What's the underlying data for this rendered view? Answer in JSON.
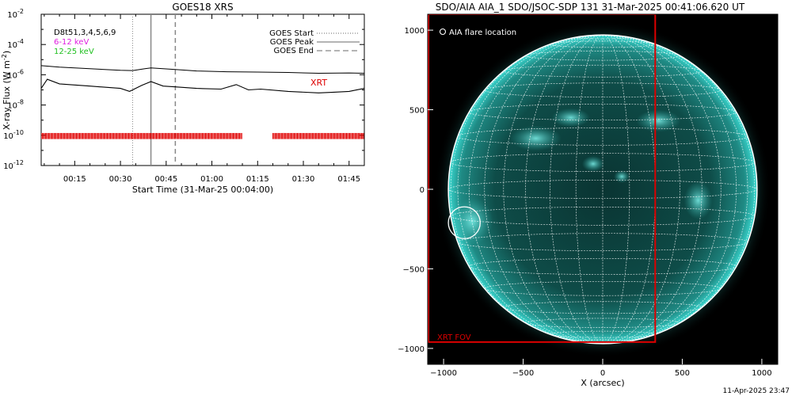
{
  "chart_data": [
    {
      "type": "line",
      "title": "GOES18 XRS",
      "xlabel": "Start Time (31-Mar-25 00:04:00)",
      "ylabel": "X-ray Flux (W m",
      "ylabel_sup": "-2",
      "ylabel_close": ")",
      "y_scale": "log",
      "ylim_exponent": [
        -12,
        -2
      ],
      "y_ticks": [
        {
          "base": "10",
          "exp": "-2",
          "v": -2
        },
        {
          "base": "10",
          "exp": "-4",
          "v": -4
        },
        {
          "base": "10",
          "exp": "-6",
          "v": -6
        },
        {
          "base": "10",
          "exp": "-8",
          "v": -8
        },
        {
          "base": "10",
          "exp": "-10",
          "v": -10
        },
        {
          "base": "10",
          "exp": "-12",
          "v": -12
        }
      ],
      "xlim_minutes": [
        4,
        110
      ],
      "x_ticks": [
        {
          "label": "00:15",
          "m": 15
        },
        {
          "label": "00:30",
          "m": 30
        },
        {
          "label": "00:45",
          "m": 45
        },
        {
          "label": "01:00",
          "m": 60
        },
        {
          "label": "01:15",
          "m": 75
        },
        {
          "label": "01:30",
          "m": 90
        },
        {
          "label": "01:45",
          "m": 105
        }
      ],
      "legend_left": [
        {
          "text": "D8t51,3,4,5,6,9",
          "color": "#000000"
        },
        {
          "text": "6-12 keV",
          "color": "#e020e0"
        },
        {
          "text": "12-25 keV",
          "color": "#20c020"
        }
      ],
      "legend_right": [
        {
          "text": "GOES Start",
          "style": "dotted"
        },
        {
          "text": "GOES Peak",
          "style": "solid"
        },
        {
          "text": "GOES End",
          "style": "dashed"
        }
      ],
      "event_lines_minutes": {
        "start": 34,
        "peak": 40,
        "end": 48
      },
      "xrt_label": "XRT",
      "xrt_coverage_minutes": [
        [
          4,
          70
        ],
        [
          80,
          110
        ]
      ],
      "series": [
        {
          "name": "GOES long",
          "color": "#000000",
          "x": [
            4,
            10,
            20,
            30,
            34,
            38,
            40,
            44,
            48,
            55,
            65,
            75,
            85,
            95,
            105,
            110
          ],
          "y_exponent": [
            -5.4,
            -5.5,
            -5.6,
            -5.7,
            -5.72,
            -5.6,
            -5.55,
            -5.6,
            -5.65,
            -5.75,
            -5.8,
            -5.82,
            -5.85,
            -5.9,
            -5.88,
            -5.9
          ]
        },
        {
          "name": "GOES short",
          "color": "#000000",
          "x": [
            4,
            6,
            10,
            20,
            30,
            33,
            37,
            40,
            44,
            48,
            55,
            63,
            68,
            72,
            76,
            85,
            95,
            100,
            105,
            110
          ],
          "y_exponent": [
            -6.9,
            -6.3,
            -6.6,
            -6.75,
            -6.9,
            -7.1,
            -6.7,
            -6.45,
            -6.75,
            -6.8,
            -6.9,
            -6.95,
            -6.65,
            -7.0,
            -6.95,
            -7.1,
            -7.2,
            -7.15,
            -7.1,
            -6.9
          ]
        }
      ]
    },
    {
      "type": "scatter",
      "title": "SDO/AIA AIA_1 SDO/JSOC-SDP 131 31-Mar-2025 00:41:06.620 UT",
      "xlabel": "X (arcsec)",
      "ylabel": "",
      "xlim": [
        -1100,
        1100
      ],
      "ylim": [
        -1100,
        1100
      ],
      "x_ticks": [
        -1000,
        -500,
        0,
        500,
        1000
      ],
      "y_ticks": [
        1000,
        500,
        0,
        -500,
        -1000
      ],
      "solar_radius": 970,
      "legend": "AIA flare location",
      "flare_location": {
        "x": -870,
        "y": -210,
        "r": 100
      },
      "xrt_fov": {
        "label": "XRT FOV",
        "x_min": -1100,
        "x_max": 330,
        "y_min": -960,
        "y_max": 1100
      },
      "colors": {
        "disk": "#3ad8d0",
        "grid": "#ffffff",
        "fov": "#dd0000",
        "background": "#000000"
      }
    }
  ],
  "footer_timestamp": "11-Apr-2025 23:47"
}
